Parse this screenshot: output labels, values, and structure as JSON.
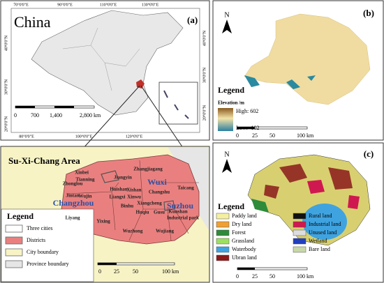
{
  "panel_a": {
    "title": "China",
    "label": "(a)",
    "top_ticks": [
      "70°0'0\"E",
      "90°0'0\"E",
      "110°0'0\"E",
      "130°0'0\"E"
    ],
    "bottom_ticks": [
      "80°0'0\"E",
      "100°0'0\"E",
      "120°0'0\"E"
    ],
    "left_ticks": [
      "40°0'0\"N",
      "30°0'0\"N",
      "20°0'0\"N"
    ],
    "right_ticks": [
      "40°0'0\"N",
      "30°0'0\"N",
      "20°0'0\"N"
    ],
    "scale": [
      "0",
      "700",
      "1,400",
      "2,800 km"
    ]
  },
  "panel_b": {
    "label": "(b)",
    "north": "N",
    "legend_title": "Legend",
    "elevation_title": "Elevation /m",
    "high": "High: 602",
    "low": "Low: -102",
    "scale": [
      "0",
      "25",
      "50",
      "100 km"
    ]
  },
  "panel_c": {
    "label": "(c)",
    "north": "N",
    "legend_title": "Legend",
    "classes": [
      {
        "name": "Paddy land",
        "color": "#f5f0a0"
      },
      {
        "name": "Dry land",
        "color": "#f0a030"
      },
      {
        "name": "Forest",
        "color": "#2e8b3a"
      },
      {
        "name": "Grassland",
        "color": "#9de060"
      },
      {
        "name": "Waterbody",
        "color": "#3fa3e0"
      },
      {
        "name": "Ubran land",
        "color": "#8b1a1a"
      },
      {
        "name": "Rural land",
        "color": "#111111"
      },
      {
        "name": "Industrial land",
        "color": "#d01850"
      },
      {
        "name": "Unused land",
        "color": "#dddddd"
      },
      {
        "name": "Wetland",
        "color": "#2040c0"
      },
      {
        "name": "Bare land",
        "color": "#c8d8a8"
      }
    ],
    "scale": [
      "0",
      "25",
      "50",
      "100 km"
    ]
  },
  "panel_d": {
    "title": "Su-Xi-Chang Area",
    "cities": [
      "Changzhou",
      "Wuxi",
      "Suzhou"
    ],
    "districts": [
      "Xinbei",
      "Tianning",
      "Zhonglou",
      "Wujin",
      "Jintan",
      "Liyang",
      "Yixing",
      "Huishan",
      "Liangxi",
      "Xinwu",
      "Xishan",
      "Binhu",
      "Jiangyin",
      "Zhangjiagang",
      "Changshu",
      "Taicang",
      "Xiangcheng",
      "Huqiu",
      "Gusu",
      "Kunshan",
      "Industrial park",
      "Wujiang",
      "Wuzhong"
    ],
    "legend_title": "Legend",
    "legend": [
      {
        "name": "Three cities",
        "color": "#ffffff"
      },
      {
        "name": "Districts",
        "color": "#e9807f"
      },
      {
        "name": "City boundary",
        "color": "#f7f3c5"
      },
      {
        "name": "Province boundary",
        "color": "#e6e6e6"
      }
    ],
    "scale": [
      "0",
      "25",
      "50",
      "100 km"
    ]
  }
}
